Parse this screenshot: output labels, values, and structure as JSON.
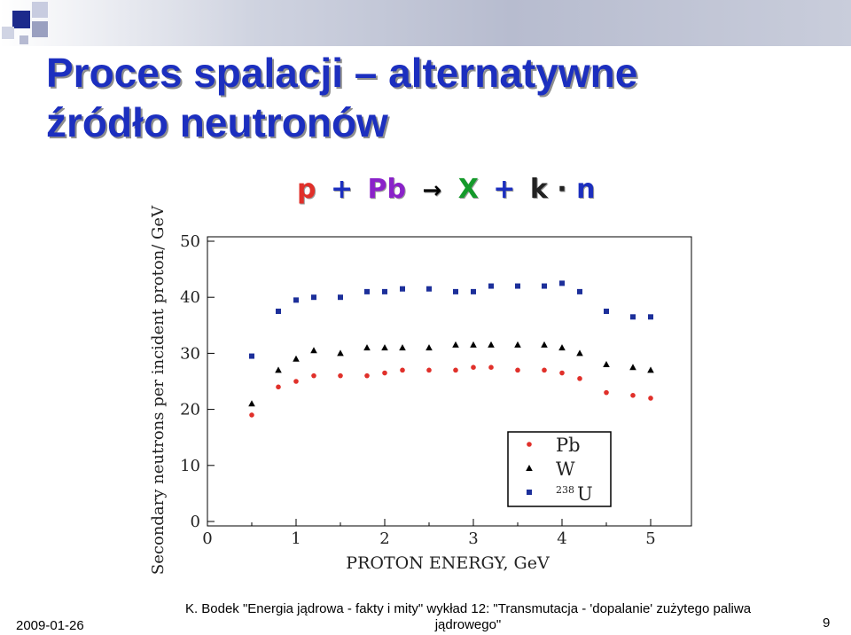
{
  "slide": {
    "title_line1": "Proces spalacji – alternatywne",
    "title_line2": "źródło neutronów",
    "reaction": {
      "p": "p",
      "plus1": "+",
      "pb": "Pb",
      "arrow": "→",
      "x": "X",
      "plus2": "+",
      "k": "k",
      "dot": "·",
      "n": "n"
    },
    "colors": {
      "title": "#1c2fbf",
      "p": "#e0302a",
      "pb": "#8a22c9",
      "x": "#159a2b",
      "n": "#1c2fbf"
    }
  },
  "footer": {
    "date": "2009-01-26",
    "source": "K. Bodek \"Energia jądrowa - fakty i mity\" wykład 12: \"Transmutacja - 'dopalanie' zużytego paliwa jądrowego\"",
    "page": "9"
  },
  "chart_data": {
    "type": "scatter",
    "title": "",
    "xlabel": "PROTON ENERGY, GeV",
    "ylabel": "Secondary neutrons per incident proton/ GeV",
    "xlim": [
      0,
      5.4
    ],
    "ylim": [
      0,
      50
    ],
    "xticks": [
      "0",
      "1",
      "2",
      "3",
      "4",
      "5"
    ],
    "yticks": [
      "0",
      "10",
      "20",
      "30",
      "40",
      "50"
    ],
    "grid": false,
    "legend_position": "bottom-right",
    "series": [
      {
        "name": "Pb",
        "marker": "circle",
        "color": "#e0302a",
        "x": [
          0.5,
          0.8,
          1.0,
          1.2,
          1.5,
          1.8,
          2.0,
          2.2,
          2.5,
          2.8,
          3.0,
          3.2,
          3.5,
          3.8,
          4.0,
          4.2,
          4.5,
          4.8,
          5.0
        ],
        "y": [
          19,
          24,
          25,
          26,
          26,
          26,
          26.5,
          27,
          27,
          27,
          27.5,
          27.5,
          27,
          27,
          26.5,
          25.5,
          23,
          22.5,
          22
        ]
      },
      {
        "name": "W",
        "marker": "triangle",
        "color": "#000000",
        "x": [
          0.5,
          0.8,
          1.0,
          1.2,
          1.5,
          1.8,
          2.0,
          2.2,
          2.5,
          2.8,
          3.0,
          3.2,
          3.5,
          3.8,
          4.0,
          4.2,
          4.5,
          4.8,
          5.0
        ],
        "y": [
          21,
          27,
          29,
          30.5,
          30,
          31,
          31,
          31,
          31,
          31.5,
          31.5,
          31.5,
          31.5,
          31.5,
          31,
          30,
          28,
          27.5,
          27
        ]
      },
      {
        "name": "238U",
        "marker": "square",
        "color": "#1c2f9a",
        "x": [
          0.5,
          0.8,
          1.0,
          1.2,
          1.5,
          1.8,
          2.0,
          2.2,
          2.5,
          2.8,
          3.0,
          3.2,
          3.5,
          3.8,
          4.0,
          4.2,
          4.5,
          4.8,
          5.0
        ],
        "y": [
          29.5,
          37.5,
          39.5,
          40,
          40,
          41,
          41,
          41.5,
          41.5,
          41,
          41,
          42,
          42,
          42,
          42.5,
          41,
          37.5,
          36.5,
          36.5
        ]
      }
    ],
    "legend": [
      {
        "label": "Pb",
        "marker": "circle"
      },
      {
        "label": "W",
        "marker": "triangle"
      },
      {
        "label_main": "U",
        "label_sup": "238",
        "marker": "square"
      }
    ]
  }
}
